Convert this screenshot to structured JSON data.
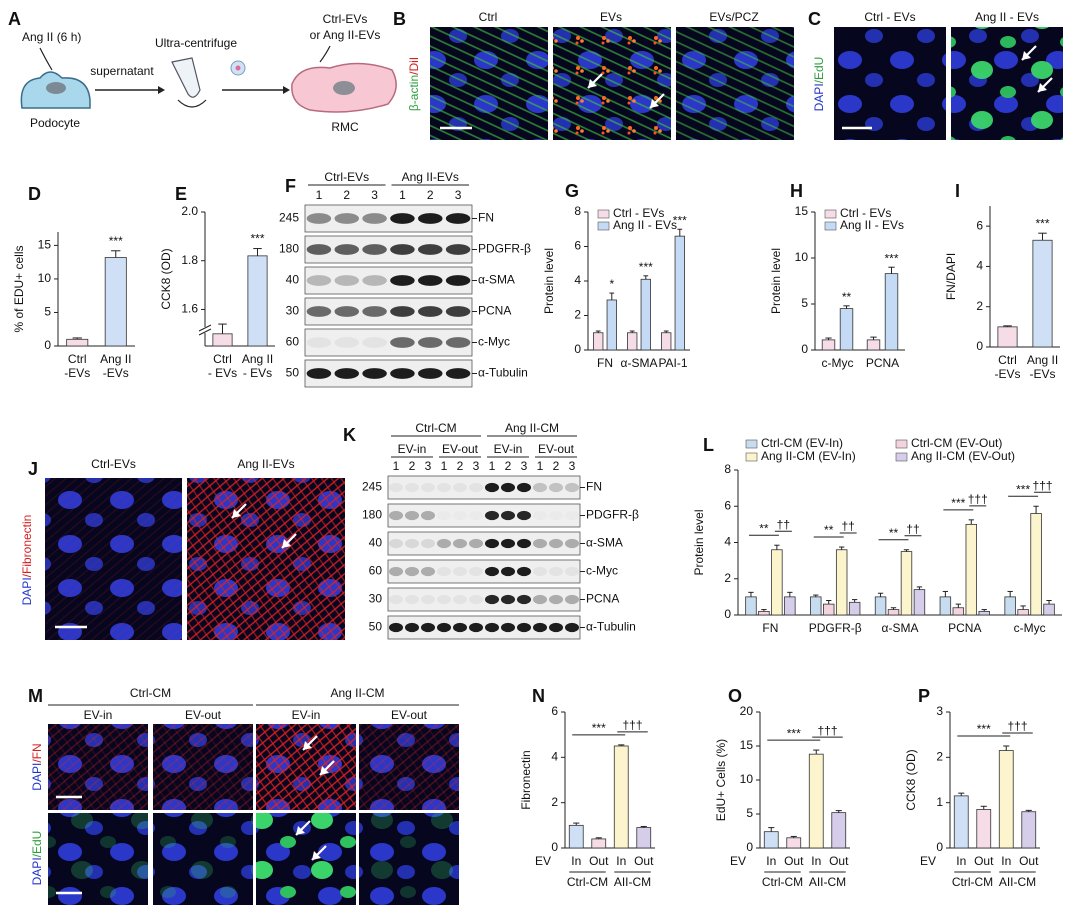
{
  "panel_labels": [
    "A",
    "B",
    "C",
    "D",
    "E",
    "F",
    "G",
    "H",
    "I",
    "J",
    "K",
    "L",
    "M",
    "N",
    "O",
    "P"
  ],
  "A": {
    "treatment": "Ang II (6 h)",
    "step1": "supernatant",
    "step2": "Ultra-centrifuge",
    "product_1": "Ctrl-EVs",
    "product_2": "or Ang II-EVs",
    "source": "Podocyte",
    "target": "RMC"
  },
  "B": {
    "columns": [
      "Ctrl",
      "EVs",
      "EVs/PCZ"
    ],
    "stain": [
      {
        "text": "β-actin",
        "color": "#2e9e3e"
      },
      {
        "text": "/DiI",
        "color": "#d42020"
      }
    ]
  },
  "C": {
    "columns": [
      "Ctrl - EVs",
      "Ang II - EVs"
    ],
    "stain": [
      {
        "text": "DAPI",
        "color": "#2233cc"
      },
      {
        "text": "/EdU",
        "color": "#2e9e3e"
      }
    ]
  },
  "J": {
    "columns": [
      "Ctrl-EVs",
      "Ang II-EVs"
    ],
    "stain": [
      {
        "text": "DAPI",
        "color": "#2233cc"
      },
      {
        "text": "/Fibronectin",
        "color": "#d42020"
      }
    ]
  },
  "M": {
    "groups": [
      "Ctrl-CM",
      "Ang II-CM"
    ],
    "columns": [
      "EV-in",
      "EV-out",
      "EV-in",
      "EV-out"
    ],
    "rows": [
      [
        {
          "text": "DAPI",
          "color": "#2233cc"
        },
        {
          "text": "/FN",
          "color": "#d42020"
        }
      ],
      [
        {
          "text": "DAPI",
          "color": "#2233cc"
        },
        {
          "text": "/EdU",
          "color": "#2e9e3e"
        }
      ]
    ]
  },
  "F": {
    "groups": [
      "Ctrl-EVs",
      "Ang II-EVs"
    ],
    "lanes": [
      1,
      2,
      3,
      1,
      2,
      3
    ],
    "markers": [
      245,
      180,
      40,
      30,
      60,
      50
    ],
    "proteins": [
      "FN",
      "PDGFR-β",
      "α-SMA",
      "PCNA",
      "c-Myc",
      "α-Tubulin"
    ]
  },
  "K": {
    "groups": [
      "Ctrl-CM",
      "Ang II-CM"
    ],
    "subgroups": [
      "EV-in",
      "EV-out",
      "EV-in",
      "EV-out"
    ],
    "lanes": [
      1,
      2,
      3,
      1,
      2,
      3,
      1,
      2,
      3,
      1,
      2,
      3
    ],
    "markers": [
      245,
      180,
      40,
      60,
      30,
      50
    ],
    "proteins": [
      "FN",
      "PDGFR-β",
      "α-SMA",
      "c-Myc",
      "PCNA",
      "α-Tubulin"
    ]
  },
  "chart_data": [
    {
      "type": "bar",
      "ylabel": "% of EDU+ cells",
      "categories": [
        [
          "Ctrl",
          "-EVs"
        ],
        [
          "Ang II",
          "-EVs"
        ]
      ],
      "values": [
        1.0,
        13.2
      ],
      "errors": [
        0.2,
        1.0
      ],
      "colors": [
        "#f6dce6",
        "#cfe0f6"
      ],
      "significance": [
        null,
        "***"
      ],
      "ylim": [
        0,
        17
      ],
      "yticks": [
        0,
        5,
        10,
        15
      ]
    },
    {
      "type": "bar",
      "ylabel": "CCK8 (OD)",
      "categories": [
        [
          "Ctrl",
          "- EVs"
        ],
        [
          "Ang II",
          "- EVs"
        ]
      ],
      "values": [
        1.5,
        1.82
      ],
      "errors": [
        0.04,
        0.03
      ],
      "colors": [
        "#f6dce6",
        "#cfe0f6"
      ],
      "significance": [
        null,
        "***"
      ],
      "ylim": [
        1.45,
        2.0
      ],
      "yticks": [
        1.6,
        1.8,
        {
          "value": 2.0,
          "label": "2.0"
        }
      ],
      "axis_break": true
    },
    {
      "type": "bar",
      "ylabel": "Protein level",
      "categories": [
        "FN",
        "α-SMA",
        "PAI-1"
      ],
      "legend": "upper left",
      "series": [
        {
          "name": "Ctrl - EVs",
          "color": "#f6dce6",
          "values": [
            1.0,
            1.0,
            1.0
          ],
          "errors": [
            0.1,
            0.1,
            0.1
          ]
        },
        {
          "name": "Ang II - EVs",
          "color": "#c5dbf5",
          "values": [
            2.9,
            4.1,
            6.6
          ],
          "errors": [
            0.4,
            0.2,
            0.4
          ],
          "significance": [
            "*",
            "***",
            "***"
          ]
        }
      ],
      "ylim": [
        0,
        8
      ],
      "yticks": [
        0,
        2,
        4,
        6,
        8
      ]
    },
    {
      "type": "bar",
      "ylabel": "Protein level",
      "categories": [
        "c-Myc",
        "PCNA"
      ],
      "legend": "upper left",
      "series": [
        {
          "name": "Ctrl - EVs",
          "color": "#f6dce6",
          "values": [
            1.1,
            1.1
          ],
          "errors": [
            0.2,
            0.3
          ]
        },
        {
          "name": "Ang II - EVs",
          "color": "#c5dbf5",
          "values": [
            4.5,
            8.3
          ],
          "errors": [
            0.3,
            0.7
          ],
          "significance": [
            "**",
            "***"
          ]
        }
      ],
      "ylim": [
        0,
        15
      ],
      "yticks": [
        0,
        5,
        10,
        15
      ]
    },
    {
      "type": "bar",
      "ylabel": "FN/DAPI",
      "categories": [
        [
          "Ctrl",
          "-EVs"
        ],
        [
          "Ang II",
          "-EVs"
        ]
      ],
      "values": [
        1.0,
        5.3
      ],
      "errors": [
        0.05,
        0.35
      ],
      "colors": [
        "#f6dce6",
        "#cfe0f6"
      ],
      "significance": [
        null,
        "***"
      ],
      "ylim": [
        0,
        7
      ],
      "yticks": [
        0,
        2,
        4,
        6
      ]
    },
    {
      "type": "bar",
      "ylabel": "Protein level",
      "categories": [
        "FN",
        "PDGFR-β",
        "α-SMA",
        "PCNA",
        "c-Myc"
      ],
      "legend": "top",
      "series": [
        {
          "name": "Ctrl-CM (EV-In)",
          "color": "#c8dcef",
          "values": [
            1.0,
            1.0,
            1.0,
            1.0,
            1.0
          ],
          "errors": [
            0.25,
            0.1,
            0.2,
            0.3,
            0.3
          ]
        },
        {
          "name": "Ctrl-CM (EV-Out)",
          "color": "#f3d3de",
          "values": [
            0.2,
            0.6,
            0.3,
            0.4,
            0.3
          ],
          "errors": [
            0.1,
            0.2,
            0.1,
            0.2,
            0.2
          ]
        },
        {
          "name": "Ang II-CM (EV-In)",
          "color": "#fbf4cc",
          "values": [
            3.6,
            3.6,
            3.5,
            5.0,
            5.6
          ],
          "errors": [
            0.25,
            0.15,
            0.1,
            0.25,
            0.4
          ]
        },
        {
          "name": "Ang II-CM (EV-Out)",
          "color": "#d6cdea",
          "values": [
            1.0,
            0.7,
            1.4,
            0.2,
            0.6
          ],
          "errors": [
            0.25,
            0.15,
            0.15,
            0.1,
            0.2
          ]
        }
      ],
      "comparisons": [
        {
          "series": [
            0,
            2
          ],
          "labels": [
            "**",
            "**",
            "**",
            "***",
            "***"
          ]
        },
        {
          "series": [
            2,
            3
          ],
          "labels": [
            "††",
            "††",
            "††",
            "†††",
            "†††"
          ]
        }
      ],
      "ylim": [
        0,
        8
      ],
      "yticks": [
        0,
        2,
        4,
        6,
        8
      ]
    },
    {
      "type": "bar",
      "ylabel": "Fibronectin",
      "categories": [
        [
          "In"
        ],
        [
          "Out"
        ],
        [
          "In"
        ],
        [
          "Out"
        ]
      ],
      "x_prefix": "EV",
      "values": [
        1.0,
        0.4,
        4.5,
        0.9
      ],
      "errors": [
        0.1,
        0.05,
        0.05,
        0.05
      ],
      "colors": [
        "#cfe0f6",
        "#f6dce6",
        "#fbf4cc",
        "#d6cdea"
      ],
      "groups": [
        {
          "label": "Ctrl-CM",
          "bars": [
            0,
            1
          ]
        },
        {
          "label": "AII-CM",
          "bars": [
            2,
            3
          ]
        }
      ],
      "comparisons": [
        {
          "bars": [
            0,
            2
          ],
          "label": "***"
        },
        {
          "bars": [
            2,
            3
          ],
          "label": "†††"
        }
      ],
      "ylim": [
        0,
        6
      ],
      "yticks": [
        0,
        2,
        4,
        6
      ]
    },
    {
      "type": "bar",
      "ylabel": "EdU+ Cells (%)",
      "categories": [
        [
          "In"
        ],
        [
          "Out"
        ],
        [
          "In"
        ],
        [
          "Out"
        ]
      ],
      "x_prefix": "EV",
      "values": [
        2.4,
        1.5,
        13.8,
        5.2
      ],
      "errors": [
        0.6,
        0.2,
        0.6,
        0.3
      ],
      "colors": [
        "#cfe0f6",
        "#f6dce6",
        "#fbf4cc",
        "#d6cdea"
      ],
      "groups": [
        {
          "label": "Ctrl-CM",
          "bars": [
            0,
            1
          ]
        },
        {
          "label": "AII-CM",
          "bars": [
            2,
            3
          ]
        }
      ],
      "comparisons": [
        {
          "bars": [
            0,
            2
          ],
          "label": "***"
        },
        {
          "bars": [
            2,
            3
          ],
          "label": "†††"
        }
      ],
      "ylim": [
        0,
        20
      ],
      "yticks": [
        0,
        5,
        10,
        15,
        20
      ]
    },
    {
      "type": "bar",
      "ylabel": "CCK8 (OD)",
      "categories": [
        [
          "In"
        ],
        [
          "Out"
        ],
        [
          "In"
        ],
        [
          "Out"
        ]
      ],
      "x_prefix": "EV",
      "values": [
        1.15,
        0.85,
        2.15,
        0.8
      ],
      "errors": [
        0.06,
        0.07,
        0.1,
        0.03
      ],
      "colors": [
        "#cfe0f6",
        "#f6dce6",
        "#fbf4cc",
        "#d6cdea"
      ],
      "groups": [
        {
          "label": "Ctrl-CM",
          "bars": [
            0,
            1
          ]
        },
        {
          "label": "AII-CM",
          "bars": [
            2,
            3
          ]
        }
      ],
      "comparisons": [
        {
          "bars": [
            0,
            2
          ],
          "label": "***"
        },
        {
          "bars": [
            2,
            3
          ],
          "label": "†††"
        }
      ],
      "ylim": [
        0,
        3
      ],
      "yticks": [
        0,
        1,
        2,
        3
      ]
    }
  ]
}
